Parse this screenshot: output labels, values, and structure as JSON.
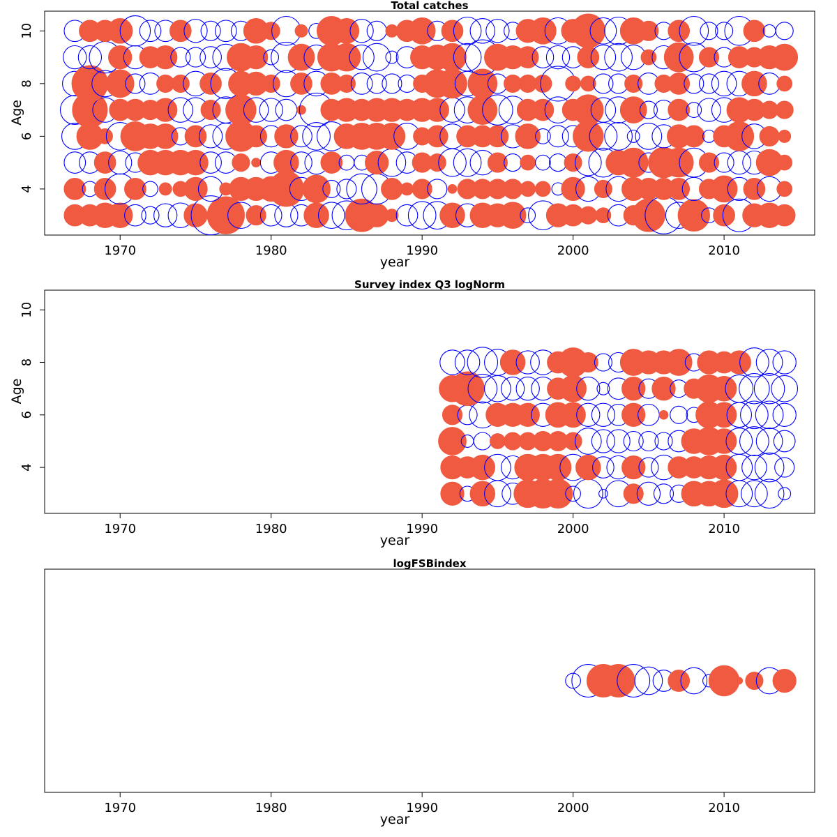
{
  "chart_data": [
    {
      "type": "scatter",
      "subtype": "bubble-residuals",
      "title": "Total catches",
      "xlabel": "year",
      "ylabel": "Age",
      "xlim": [
        1965,
        2016
      ],
      "ylim": [
        2.25,
        10.75
      ],
      "x_ticks": [
        "1970",
        "1980",
        "1990",
        "2000",
        "2010"
      ],
      "y_ticks": [
        "4",
        "6",
        "8",
        "10"
      ],
      "legend": "none",
      "grid": false,
      "colors": {
        "positive": "#f05a40",
        "negative": "#0000ff"
      },
      "years": [
        1967,
        1968,
        1969,
        1970,
        1971,
        1972,
        1973,
        1974,
        1975,
        1976,
        1977,
        1978,
        1979,
        1980,
        1981,
        1982,
        1983,
        1984,
        1985,
        1986,
        1987,
        1988,
        1989,
        1990,
        1991,
        1992,
        1993,
        1994,
        1995,
        1996,
        1997,
        1998,
        1999,
        2000,
        2001,
        2002,
        2003,
        2004,
        2005,
        2006,
        2007,
        2008,
        2009,
        2010,
        2011,
        2012,
        2013,
        2014
      ],
      "ages": [
        3,
        4,
        5,
        6,
        7,
        8,
        9,
        10
      ],
      "residuals": [
        [
          0.3,
          0.3,
          0.4,
          0.4,
          -0.3,
          -0.2,
          -0.35,
          -0.4,
          0.35,
          -1.0,
          0.9,
          -0.45,
          0.25,
          -0.3,
          -0.35,
          -0.3,
          0.4,
          -0.45,
          -0.55,
          0.7,
          0.35,
          0.1,
          -0.3,
          -0.5,
          -0.5,
          0.4,
          -0.35,
          0.4,
          0.35,
          0.45,
          -0.15,
          -0.55,
          0.35,
          0.3,
          0.2,
          0.15,
          -0.3,
          0.25,
          0.7,
          -0.9,
          -0.45,
          0.65,
          -0.15,
          0.3,
          -0.7,
          0.35,
          0.4,
          0.3
        ],
        [
          0.3,
          -0.15,
          0.3,
          -0.6,
          0.3,
          -0.15,
          0.1,
          0.15,
          0.35,
          -0.4,
          0.1,
          0.35,
          0.35,
          0.4,
          0.8,
          -0.35,
          0.5,
          -0.2,
          -0.25,
          -0.6,
          -0.6,
          0.3,
          0.1,
          0.25,
          -0.25,
          0.05,
          0.25,
          0.25,
          0.25,
          0.25,
          0.15,
          0.15,
          -0.1,
          0.35,
          -0.4,
          0.2,
          -0.4,
          0.35,
          0.3,
          0.3,
          0.3,
          -0.35,
          0.25,
          0.45,
          -0.35,
          0.3,
          -0.4,
          0.15
        ],
        [
          -0.3,
          -0.3,
          0.3,
          -0.35,
          -0.25,
          0.4,
          0.4,
          0.4,
          0.4,
          -0.3,
          -0.3,
          0.2,
          0.05,
          -0.3,
          0.4,
          -0.3,
          -0.35,
          0.3,
          -0.15,
          -0.15,
          0.35,
          -0.5,
          -0.3,
          0.25,
          0.2,
          -0.5,
          -0.5,
          -0.4,
          0.25,
          -0.2,
          0.15,
          -0.15,
          -0.2,
          0.2,
          -0.45,
          -0.55,
          0.4,
          0.55,
          -0.25,
          0.6,
          0.55,
          -0.55,
          0.25,
          -0.25,
          -0.35,
          -0.35,
          0.45,
          0.15
        ],
        [
          -0.45,
          0.45,
          0.15,
          -0.5,
          0.55,
          0.4,
          0.4,
          -0.2,
          0.3,
          -0.35,
          -0.45,
          0.6,
          0.3,
          -0.3,
          0.35,
          -0.3,
          -0.5,
          -0.55,
          0.4,
          0.45,
          0.45,
          0.45,
          -0.45,
          0.2,
          0.3,
          -0.4,
          0.3,
          0.3,
          0.3,
          -0.35,
          0.4,
          -0.15,
          -0.3,
          -0.3,
          0.6,
          -0.5,
          -0.5,
          -0.1,
          -0.45,
          -0.35,
          0.35,
          0.3,
          -0.1,
          0.3,
          0.55,
          -0.4,
          0.25,
          0.1
        ],
        [
          -0.55,
          0.8,
          -0.4,
          0.3,
          0.3,
          0.25,
          0.35,
          -0.4,
          -0.4,
          0.25,
          -0.45,
          0.6,
          -0.4,
          -0.35,
          -0.3,
          0.05,
          -0.75,
          0.3,
          0.35,
          0.3,
          0.35,
          0.35,
          0.3,
          0.35,
          0.35,
          -0.4,
          -0.45,
          0.55,
          -0.6,
          -0.5,
          0.3,
          0.3,
          -0.45,
          0.3,
          0.6,
          -0.4,
          -0.45,
          0.45,
          -0.2,
          -0.25,
          0.3,
          -0.15,
          -0.35,
          -0.4,
          0.4,
          0.3,
          0.2,
          0.2
        ],
        [
          -0.4,
          0.85,
          -0.45,
          0.5,
          -0.25,
          -0.3,
          0.2,
          0.2,
          -0.4,
          0.3,
          -0.6,
          0.4,
          0.35,
          0.2,
          -0.45,
          0.3,
          -0.4,
          0.3,
          0.2,
          -0.3,
          -0.25,
          -0.25,
          -0.2,
          0.2,
          0.5,
          0.55,
          -0.4,
          0.55,
          -0.25,
          0.2,
          0.2,
          0.2,
          -0.8,
          0.15,
          0.15,
          -0.25,
          -0.25,
          0.2,
          -0.3,
          0.2,
          0.3,
          -0.25,
          -0.25,
          -0.4,
          -0.4,
          0.4,
          -0.3,
          0.15
        ],
        [
          -0.35,
          -0.35,
          -0.65,
          0.35,
          -0.35,
          0.3,
          0.35,
          -0.25,
          -0.25,
          -0.3,
          -0.45,
          0.5,
          0.35,
          -0.15,
          -0.6,
          0.45,
          -0.4,
          0.5,
          0.5,
          -0.4,
          -0.5,
          -0.1,
          -0.3,
          0.35,
          0.4,
          0.5,
          -0.5,
          -0.8,
          0.45,
          0.35,
          0.3,
          -0.3,
          -0.35,
          -0.3,
          0.3,
          -0.4,
          -0.5,
          -0.4,
          0.15,
          -0.35,
          0.55,
          -0.55,
          0.25,
          -0.25,
          0.3,
          0.25,
          0.35,
          0.45
        ],
        [
          -0.3,
          0.3,
          0.3,
          0.4,
          -0.6,
          -0.3,
          -0.3,
          0.3,
          -0.35,
          -0.25,
          -0.3,
          -0.25,
          0.4,
          0.2,
          -0.55,
          0.1,
          -0.15,
          0.55,
          0.4,
          -0.35,
          -0.25,
          0.1,
          0.3,
          0.45,
          -0.25,
          0.3,
          -0.5,
          -0.4,
          -0.35,
          -0.2,
          0.35,
          0.45,
          -0.45,
          0.35,
          0.75,
          -0.45,
          -0.5,
          0.45,
          0.25,
          -0.2,
          0.3,
          -0.55,
          -0.2,
          -0.2,
          -0.55,
          0.3,
          -0.1,
          -0.2
        ]
      ]
    },
    {
      "type": "scatter",
      "subtype": "bubble-residuals",
      "title": "Survey index Q3 logNorm",
      "xlabel": "year",
      "ylabel": "Age",
      "xlim": [
        1965,
        2016
      ],
      "ylim": [
        2.25,
        10.75
      ],
      "x_ticks": [
        "1970",
        "1980",
        "1990",
        "2000",
        "2010"
      ],
      "y_ticks": [
        "4",
        "6",
        "8",
        "10"
      ],
      "legend": "none",
      "grid": false,
      "colors": {
        "positive": "#f05a40",
        "negative": "#0000ff"
      },
      "years": [
        1992,
        1993,
        1994,
        1995,
        1996,
        1997,
        1998,
        1999,
        2000,
        2001,
        2002,
        2003,
        2004,
        2005,
        2006,
        2007,
        2008,
        2009,
        2010,
        2011,
        2012,
        2013,
        2014
      ],
      "ages": [
        3,
        4,
        5,
        6,
        7,
        8
      ],
      "residuals": [
        [
          0.35,
          -0.15,
          0.4,
          -0.45,
          -0.3,
          0.5,
          0.55,
          0.55,
          -0.15,
          -0.55,
          -0.05,
          -0.45,
          0.25,
          -0.35,
          -0.25,
          -0.2,
          0.4,
          0.4,
          0.5,
          -0.45,
          -0.45,
          -0.55,
          -0.1
        ],
        [
          0.35,
          0.3,
          0.4,
          -0.45,
          -0.35,
          0.45,
          0.45,
          0.45,
          -0.45,
          0.4,
          -0.3,
          -0.35,
          0.35,
          -0.25,
          -0.4,
          0.3,
          0.3,
          0.35,
          0.4,
          -0.45,
          -0.4,
          -0.55,
          -0.25
        ],
        [
          0.5,
          -0.1,
          -0.2,
          0.15,
          0.2,
          0.2,
          0.25,
          0.25,
          0.2,
          -0.45,
          -0.35,
          -0.35,
          -0.25,
          -0.25,
          -0.2,
          -0.3,
          0.4,
          0.5,
          0.4,
          -0.45,
          -0.55,
          -0.45,
          -0.3
        ],
        [
          0.25,
          -0.25,
          -0.45,
          0.35,
          0.35,
          0.35,
          -0.35,
          0.4,
          0.4,
          -0.35,
          -0.35,
          -0.3,
          0.35,
          -0.3,
          0.05,
          -0.2,
          -0.15,
          0.45,
          0.4,
          -0.4,
          -0.5,
          -0.5,
          -0.35
        ],
        [
          0.45,
          0.75,
          -0.55,
          -0.45,
          -0.35,
          -0.35,
          -0.35,
          0.3,
          0.45,
          -0.35,
          -0.1,
          -0.3,
          0.35,
          -0.25,
          0.35,
          -0.2,
          0.25,
          0.5,
          0.4,
          -0.5,
          -0.6,
          -0.6,
          -0.45
        ],
        [
          -0.4,
          -0.4,
          -0.6,
          -0.45,
          0.4,
          -0.35,
          -0.4,
          0.3,
          0.55,
          0.25,
          -0.2,
          -0.25,
          0.45,
          0.35,
          0.35,
          0.45,
          -0.2,
          0.35,
          0.3,
          0.35,
          -0.55,
          -0.45,
          -0.35
        ]
      ]
    },
    {
      "type": "scatter",
      "subtype": "bubble-residuals",
      "title": "logFSBindex",
      "xlabel": "year",
      "ylabel": "",
      "xlim": [
        1965,
        2016
      ],
      "ylim": [
        0,
        1
      ],
      "x_ticks": [
        "1970",
        "1980",
        "1990",
        "2000",
        "2010"
      ],
      "y_ticks": [],
      "legend": "none",
      "grid": false,
      "colors": {
        "positive": "#f05a40",
        "negative": "#0000ff"
      },
      "years": [
        2000,
        2001,
        2002,
        2003,
        2004,
        2005,
        2006,
        2007,
        2008,
        2009,
        2010,
        2011,
        2012,
        2013,
        2014
      ],
      "ages": [
        1
      ],
      "row_level": 0.5,
      "residuals": [
        [
          -0.15,
          -0.7,
          0.7,
          0.7,
          -0.7,
          -0.5,
          -0.3,
          0.3,
          -0.45,
          -0.1,
          0.6,
          0.03,
          0.2,
          -0.45,
          0.35
        ]
      ]
    }
  ]
}
